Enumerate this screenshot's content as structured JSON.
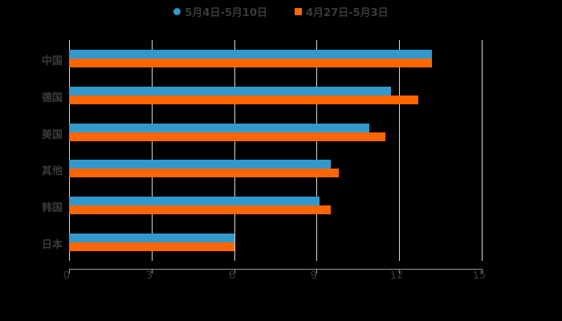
{
  "chart_data": {
    "type": "bar",
    "orientation": "horizontal",
    "title": "",
    "categories": [
      "中国",
      "德国",
      "美国",
      "其他",
      "韩国",
      "日本"
    ],
    "series": [
      {
        "name": "5月4日-5月10日",
        "color": "#3399cc",
        "values": [
          13.2,
          11.7,
          10.9,
          9.5,
          9.1,
          6.0
        ]
      },
      {
        "name": "4月27日-5月3日",
        "color": "#ff6600",
        "values": [
          13.2,
          12.7,
          11.5,
          9.8,
          9.5,
          6.0
        ]
      }
    ],
    "xlim": [
      0,
      15
    ],
    "xticks": [
      "0",
      "3",
      "6",
      "9",
      "12",
      "15"
    ],
    "xlabel": "",
    "ylabel": "",
    "grid": true,
    "legend_position": "top"
  },
  "legend": [
    {
      "label": "5月4日-5月10日",
      "color": "#3399cc",
      "shape": "circle"
    },
    {
      "label": "4月27日-5月3日",
      "color": "#ff6600",
      "shape": "square"
    }
  ]
}
